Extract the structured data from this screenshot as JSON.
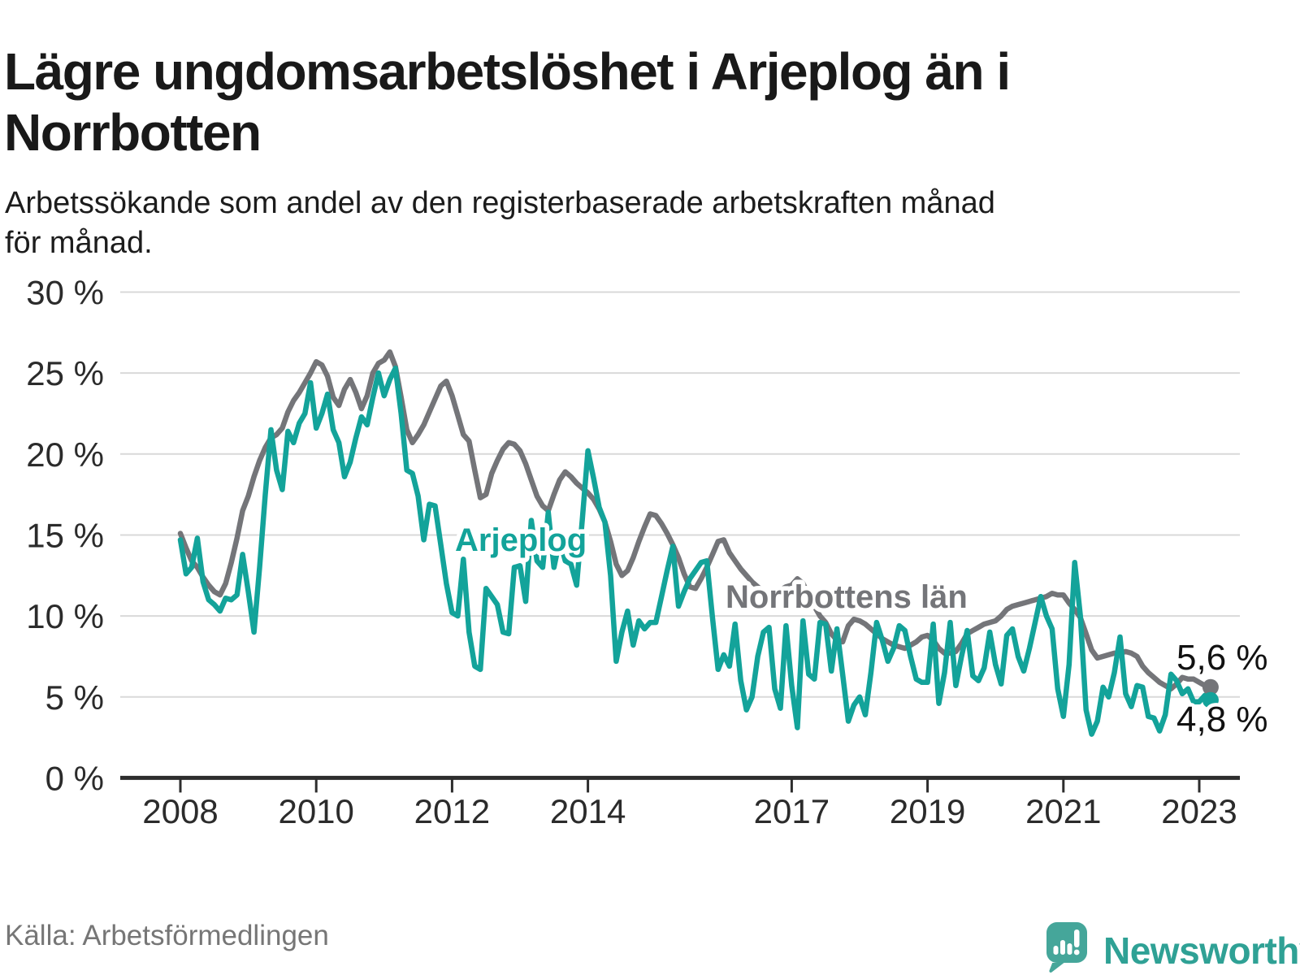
{
  "header": {
    "title_lines": [
      "Lägre ungdomsarbetslöshet i Arjeplog än i",
      "Norrbotten"
    ],
    "subtitle_lines": [
      "Arbetssökande som andel av den registerbaserade arbetskraften månad",
      "för månad."
    ]
  },
  "chart_data": {
    "type": "line",
    "unit": "%",
    "frequency": "monthly",
    "start": "2008-01",
    "end": "2023-03",
    "ylim": [
      0,
      30
    ],
    "grid": true,
    "y_tick_values": [
      0,
      5,
      10,
      15,
      20,
      25,
      30
    ],
    "y_tick_labels": [
      "0 %",
      "5 %",
      "10 %",
      "15 %",
      "20 %",
      "25 %",
      "30 %"
    ],
    "x_tick_years": [
      2008,
      2010,
      2012,
      2014,
      2017,
      2019,
      2021,
      2023
    ],
    "axis_color": "#2d2d2d",
    "grid_color": "#d9d9d9",
    "series": [
      {
        "name": "Norrbottens län",
        "color": "#747579",
        "end_label": "5,6 %",
        "values": [
          15.1,
          14.2,
          13.4,
          13.0,
          12.4,
          11.9,
          11.5,
          11.3,
          12.0,
          13.3,
          14.8,
          16.5,
          17.4,
          18.6,
          19.6,
          20.4,
          21.0,
          21.2,
          21.6,
          22.6,
          23.3,
          23.8,
          24.4,
          25.0,
          25.7,
          25.5,
          24.8,
          23.5,
          23.0,
          24.0,
          24.6,
          23.8,
          22.8,
          23.6,
          25.0,
          25.6,
          25.8,
          26.3,
          25.4,
          23.5,
          21.5,
          20.7,
          21.2,
          21.8,
          22.6,
          23.4,
          24.2,
          24.5,
          23.6,
          22.4,
          21.2,
          20.8,
          19.0,
          17.3,
          17.5,
          18.8,
          19.6,
          20.3,
          20.7,
          20.6,
          20.2,
          19.4,
          18.4,
          17.4,
          16.8,
          16.5,
          17.5,
          18.4,
          18.9,
          18.6,
          18.2,
          17.9,
          17.6,
          17.2,
          16.6,
          15.8,
          14.6,
          13.2,
          12.5,
          12.8,
          13.6,
          14.6,
          15.5,
          16.3,
          16.2,
          15.7,
          15.1,
          14.4,
          13.6,
          12.6,
          11.8,
          11.7,
          12.3,
          13.0,
          13.8,
          14.6,
          14.7,
          13.9,
          13.4,
          12.9,
          12.5,
          12.1,
          11.8,
          11.5,
          11.4,
          11.5,
          11.6,
          11.8,
          11.9,
          12.3,
          12.0,
          11.3,
          10.6,
          10.0,
          9.6,
          8.9,
          8.5,
          8.4,
          9.4,
          9.8,
          9.7,
          9.5,
          9.2,
          8.9,
          8.6,
          8.4,
          8.2,
          8.1,
          8.0,
          8.2,
          8.4,
          8.7,
          8.8,
          8.5,
          8.0,
          7.7,
          7.7,
          7.8,
          8.3,
          8.9,
          9.1,
          9.3,
          9.5,
          9.6,
          9.7,
          10.0,
          10.4,
          10.6,
          10.7,
          10.8,
          10.9,
          11.0,
          11.1,
          11.2,
          11.4,
          11.3,
          11.3,
          10.8,
          10.4,
          9.9,
          8.9,
          7.9,
          7.4,
          7.5,
          7.6,
          7.7,
          7.7,
          7.8,
          7.7,
          7.5,
          6.9,
          6.5,
          6.2,
          5.9,
          5.7,
          5.5,
          5.8,
          6.2,
          6.1,
          6.1,
          5.9,
          5.7,
          5.6
        ]
      },
      {
        "name": "Arjeplog",
        "color": "#13a39a",
        "end_label": "4,8 %",
        "values": [
          14.7,
          12.6,
          13.0,
          14.8,
          12.1,
          11.0,
          10.7,
          10.3,
          11.1,
          11.0,
          11.3,
          13.8,
          11.5,
          9.0,
          13.0,
          17.5,
          21.5,
          19.0,
          17.8,
          21.4,
          20.7,
          21.9,
          22.5,
          24.4,
          21.6,
          22.5,
          23.7,
          21.5,
          20.7,
          18.6,
          19.5,
          21.0,
          22.3,
          21.8,
          23.5,
          25.0,
          23.6,
          24.6,
          25.3,
          22.5,
          19.0,
          18.8,
          17.4,
          14.7,
          16.9,
          16.8,
          14.4,
          12.0,
          10.2,
          10.0,
          13.5,
          9.0,
          6.9,
          6.7,
          11.7,
          11.2,
          10.7,
          9.0,
          8.9,
          13.0,
          13.1,
          10.9,
          15.9,
          13.4,
          13.0,
          16.4,
          13.0,
          14.7,
          13.4,
          13.2,
          11.9,
          15.9,
          20.2,
          18.5,
          16.7,
          15.8,
          12.5,
          7.2,
          9.0,
          10.3,
          8.2,
          9.7,
          9.2,
          9.6,
          9.6,
          11.2,
          12.8,
          14.3,
          10.6,
          11.5,
          12.3,
          12.8,
          13.3,
          13.4,
          9.9,
          6.7,
          7.6,
          6.9,
          9.5,
          6.0,
          4.2,
          5.0,
          7.5,
          9.0,
          9.3,
          5.5,
          4.3,
          9.4,
          5.7,
          3.1,
          9.7,
          6.4,
          6.1,
          9.6,
          9.5,
          6.6,
          9.2,
          6.4,
          3.5,
          4.5,
          5.0,
          3.9,
          6.5,
          9.6,
          8.5,
          7.2,
          8.0,
          9.4,
          9.1,
          7.5,
          6.1,
          5.9,
          5.9,
          9.5,
          4.6,
          6.5,
          9.6,
          5.7,
          7.5,
          9.1,
          6.3,
          6.0,
          6.8,
          9.0,
          7.0,
          5.8,
          8.8,
          9.2,
          7.5,
          6.6,
          8.0,
          9.6,
          11.2,
          10.0,
          9.2,
          5.5,
          3.8,
          7.0,
          13.3,
          10.0,
          4.2,
          2.7,
          3.5,
          5.6,
          5.0,
          6.5,
          8.7,
          5.2,
          4.4,
          5.7,
          5.6,
          3.8,
          3.7,
          2.9,
          3.9,
          6.4,
          6.0,
          5.2,
          5.5,
          4.7,
          4.7,
          5.1,
          4.8
        ]
      }
    ]
  },
  "footer": {
    "source": "Källa: Arbetsförmedlingen",
    "logo_text": "Newsworthy"
  },
  "colors": {
    "arjeplog_teal": "#13a39a",
    "norrbotten_gray": "#747579",
    "logo_teal": "#45a69a",
    "logo_text_teal": "#2fa195",
    "title_black": "#191919",
    "source_gray": "#767676"
  }
}
